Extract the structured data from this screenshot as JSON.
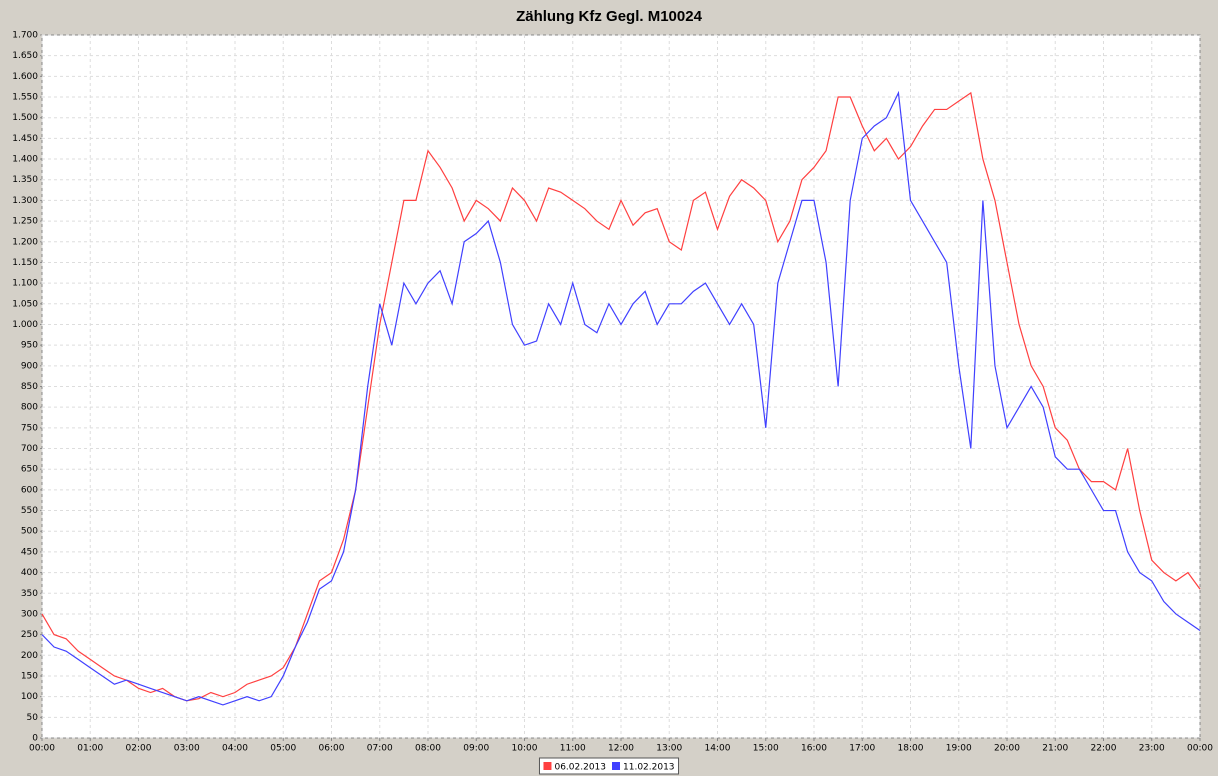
{
  "chart_data": {
    "type": "line",
    "title": "Zählung Kfz Gegl. M10024",
    "x": [
      0,
      0.25,
      0.5,
      0.75,
      1,
      1.25,
      1.5,
      1.75,
      2,
      2.25,
      2.5,
      2.75,
      3,
      3.25,
      3.5,
      3.75,
      4,
      4.25,
      4.5,
      4.75,
      5,
      5.25,
      5.5,
      5.75,
      6,
      6.25,
      6.5,
      6.75,
      7,
      7.25,
      7.5,
      7.75,
      8,
      8.25,
      8.5,
      8.75,
      9,
      9.25,
      9.5,
      9.75,
      10,
      10.25,
      10.5,
      10.75,
      11,
      11.25,
      11.5,
      11.75,
      12,
      12.25,
      12.5,
      12.75,
      13,
      13.25,
      13.5,
      13.75,
      14,
      14.25,
      14.5,
      14.75,
      15,
      15.25,
      15.5,
      15.75,
      16,
      16.25,
      16.5,
      16.75,
      17,
      17.25,
      17.5,
      17.75,
      18,
      18.25,
      18.5,
      18.75,
      19,
      19.25,
      19.5,
      19.75,
      20,
      20.25,
      20.5,
      20.75,
      21,
      21.25,
      21.5,
      21.75,
      22,
      22.25,
      22.5,
      22.75,
      23,
      23.25,
      23.5,
      23.75,
      24
    ],
    "series": [
      {
        "name": "06.02.2013",
        "color": "#ff4040",
        "values": [
          300,
          250,
          240,
          210,
          190,
          170,
          150,
          140,
          120,
          110,
          120,
          100,
          90,
          95,
          110,
          100,
          110,
          130,
          140,
          150,
          170,
          220,
          300,
          380,
          400,
          480,
          600,
          800,
          1000,
          1150,
          1300,
          1300,
          1420,
          1380,
          1330,
          1250,
          1300,
          1280,
          1250,
          1330,
          1300,
          1250,
          1330,
          1320,
          1300,
          1280,
          1250,
          1230,
          1300,
          1240,
          1270,
          1280,
          1200,
          1180,
          1300,
          1320,
          1230,
          1310,
          1350,
          1330,
          1300,
          1200,
          1250,
          1350,
          1380,
          1420,
          1550,
          1550,
          1480,
          1420,
          1450,
          1400,
          1430,
          1480,
          1520,
          1520,
          1540,
          1560,
          1400,
          1300,
          1150,
          1000,
          900,
          850,
          750,
          720,
          650,
          620,
          620,
          600,
          700,
          550,
          430,
          400,
          380,
          400,
          360
        ]
      },
      {
        "name": "11.02.2013",
        "color": "#4040ff",
        "values": [
          250,
          220,
          210,
          190,
          170,
          150,
          130,
          140,
          130,
          120,
          110,
          100,
          90,
          100,
          90,
          80,
          90,
          100,
          90,
          100,
          150,
          220,
          280,
          360,
          380,
          450,
          600,
          850,
          1050,
          950,
          1100,
          1050,
          1100,
          1130,
          1050,
          1200,
          1220,
          1250,
          1150,
          1000,
          950,
          960,
          1050,
          1000,
          1100,
          1000,
          980,
          1050,
          1000,
          1050,
          1080,
          1000,
          1050,
          1050,
          1080,
          1100,
          1050,
          1000,
          1050,
          1000,
          750,
          1100,
          1200,
          1300,
          1300,
          1150,
          850,
          1300,
          1450,
          1480,
          1500,
          1560,
          1300,
          1250,
          1200,
          1150,
          900,
          700,
          1300,
          900,
          750,
          800,
          850,
          800,
          680,
          650,
          650,
          600,
          550,
          550,
          450,
          400,
          380,
          330,
          300,
          280,
          260
        ]
      }
    ],
    "xlim": [
      0,
      24
    ],
    "xticks": [
      {
        "value": 0,
        "label": "00:00"
      },
      {
        "value": 1,
        "label": "01:00"
      },
      {
        "value": 2,
        "label": "02:00"
      },
      {
        "value": 3,
        "label": "03:00"
      },
      {
        "value": 4,
        "label": "04:00"
      },
      {
        "value": 5,
        "label": "05:00"
      },
      {
        "value": 6,
        "label": "06:00"
      },
      {
        "value": 7,
        "label": "07:00"
      },
      {
        "value": 8,
        "label": "08:00"
      },
      {
        "value": 9,
        "label": "09:00"
      },
      {
        "value": 10,
        "label": "10:00"
      },
      {
        "value": 11,
        "label": "11:00"
      },
      {
        "value": 12,
        "label": "12:00"
      },
      {
        "value": 13,
        "label": "13:00"
      },
      {
        "value": 14,
        "label": "14:00"
      },
      {
        "value": 15,
        "label": "15:00"
      },
      {
        "value": 16,
        "label": "16:00"
      },
      {
        "value": 17,
        "label": "17:00"
      },
      {
        "value": 18,
        "label": "18:00"
      },
      {
        "value": 19,
        "label": "19:00"
      },
      {
        "value": 20,
        "label": "20:00"
      },
      {
        "value": 21,
        "label": "21:00"
      },
      {
        "value": 22,
        "label": "22:00"
      },
      {
        "value": 23,
        "label": "23:00"
      },
      {
        "value": 24,
        "label": "00:00"
      }
    ],
    "ylim": [
      0,
      1700
    ],
    "yticks": [
      0,
      50,
      100,
      150,
      200,
      250,
      300,
      350,
      400,
      450,
      500,
      550,
      600,
      650,
      700,
      750,
      800,
      850,
      900,
      950,
      {
        "value": 1000,
        "label": "1.000"
      },
      {
        "value": 1050,
        "label": "1.050"
      },
      {
        "value": 1100,
        "label": "1.100"
      },
      {
        "value": 1150,
        "label": "1.150"
      },
      {
        "value": 1200,
        "label": "1.200"
      },
      {
        "value": 1250,
        "label": "1.250"
      },
      {
        "value": 1300,
        "label": "1.300"
      },
      {
        "value": 1350,
        "label": "1.350"
      },
      {
        "value": 1400,
        "label": "1.400"
      },
      {
        "value": 1450,
        "label": "1.450"
      },
      {
        "value": 1500,
        "label": "1.500"
      },
      {
        "value": 1550,
        "label": "1.550"
      },
      {
        "value": 1600,
        "label": "1.600"
      },
      {
        "value": 1650,
        "label": "1.650"
      },
      {
        "value": 1700,
        "label": "1.700"
      }
    ],
    "grid": true,
    "legend": "bottom"
  }
}
